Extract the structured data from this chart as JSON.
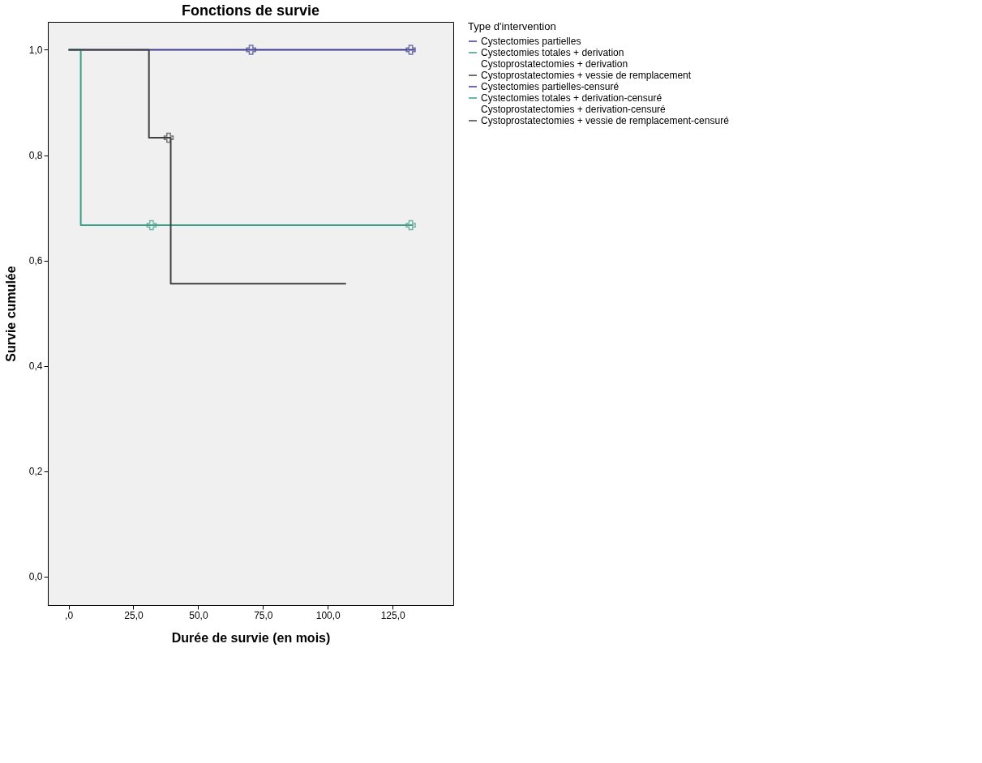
{
  "chart_data": {
    "type": "step",
    "title": "Fonctions de survie",
    "xlabel": "Durée de survie (en mois)",
    "ylabel": "Survie cumulée",
    "legend_title": "Type d'intervention",
    "legend": "right",
    "grid": false,
    "xlim": [
      -8,
      148.4
    ],
    "ylim": [
      -0.054,
      1.053
    ],
    "xticks": [
      {
        "value": 0,
        "label": ",0"
      },
      {
        "value": 25,
        "label": "25,0"
      },
      {
        "value": 50,
        "label": "50,0"
      },
      {
        "value": 75,
        "label": "75,0"
      },
      {
        "value": 100,
        "label": "100,0"
      },
      {
        "value": 125,
        "label": "125,0"
      }
    ],
    "yticks": [
      {
        "value": 0,
        "label": "0,0"
      },
      {
        "value": 0.2,
        "label": "0,2"
      },
      {
        "value": 0.4,
        "label": "0,4"
      },
      {
        "value": 0.6,
        "label": "0,6"
      },
      {
        "value": 0.8,
        "label": "0,8"
      },
      {
        "value": 1,
        "label": "1,0"
      }
    ],
    "series": [
      {
        "name": "Cystectomies partielles",
        "color": "#3b3b8f",
        "x": [
          0,
          133.6
        ],
        "values": [
          1,
          1
        ]
      },
      {
        "name": "Cystectomies totales + derivation",
        "color": "#3a9e88",
        "x": [
          0,
          4.7,
          133
        ],
        "values": [
          1,
          0.667,
          0.667
        ]
      },
      {
        "name": "Cystoprostatectomies + derivation"
      },
      {
        "name": "Cystoprostatectomies + vessie de remplacement",
        "color": "#404040",
        "x": [
          0,
          31,
          39.4,
          107
        ],
        "values": [
          1,
          0.833,
          0.556,
          0.556
        ]
      },
      {
        "name": "Cystectomies partielles-censuré",
        "type": "scatter",
        "marker": "cross",
        "color": "#3b3b8f",
        "x": [
          70.4,
          132
        ],
        "values": [
          1,
          1
        ]
      },
      {
        "name": "Cystectomies totales + derivation-censuré",
        "type": "scatter",
        "marker": "cross",
        "color": "#3a9e88",
        "x": [
          32,
          132
        ],
        "values": [
          0.667,
          0.667
        ]
      },
      {
        "name": "Cystoprostatectomies + derivation-censuré",
        "type": "scatter"
      },
      {
        "name": "Cystoprostatectomies + vessie de remplacement-censuré",
        "type": "scatter",
        "marker": "cross",
        "color": "#404040",
        "x": [
          38.6
        ],
        "values": [
          0.833
        ]
      }
    ]
  }
}
